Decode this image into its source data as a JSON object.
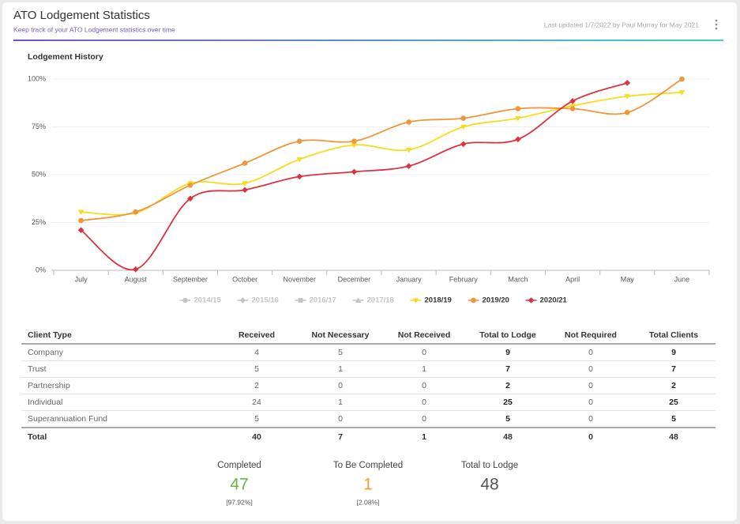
{
  "header": {
    "title": "ATO Lodgement Statistics",
    "subtitle": "Keep track of your ATO Lodgement statistics over time",
    "updated": "Last updated 1/7/2022 by Paul Murray for May 2021"
  },
  "chart_data": {
    "type": "line",
    "title": "Lodgement History",
    "categories": [
      "July",
      "August",
      "September",
      "October",
      "November",
      "December",
      "January",
      "February",
      "March",
      "April",
      "May",
      "June"
    ],
    "ylim": [
      0,
      100
    ],
    "yticks": [
      {
        "value": 0,
        "label": "0%"
      },
      {
        "value": 25,
        "label": "25%"
      },
      {
        "value": 50,
        "label": "50%"
      },
      {
        "value": 75,
        "label": "75%"
      },
      {
        "value": 100,
        "label": "100%"
      }
    ],
    "grid": true,
    "legend": "bottom",
    "series": [
      {
        "name": "2014/15",
        "color": "#c4c4c4",
        "marker": "circle",
        "visible": false,
        "values": [
          null,
          null,
          null,
          null,
          null,
          null,
          null,
          null,
          null,
          null,
          null,
          null
        ]
      },
      {
        "name": "2015/16",
        "color": "#c4c4c4",
        "marker": "diamond",
        "visible": false,
        "values": [
          null,
          null,
          null,
          null,
          null,
          null,
          null,
          null,
          null,
          null,
          null,
          null
        ]
      },
      {
        "name": "2016/17",
        "color": "#c4c4c4",
        "marker": "square",
        "visible": false,
        "values": [
          null,
          null,
          null,
          null,
          null,
          null,
          null,
          null,
          null,
          null,
          null,
          null
        ]
      },
      {
        "name": "2017/18",
        "color": "#c4c4c4",
        "marker": "triangle",
        "visible": false,
        "values": [
          null,
          null,
          null,
          null,
          null,
          null,
          null,
          null,
          null,
          null,
          null,
          null
        ]
      },
      {
        "name": "2018/19",
        "color": "#f7dc1e",
        "marker": "triangle-down",
        "visible": true,
        "values": [
          30.5,
          30,
          45.5,
          45.5,
          58,
          65.5,
          63,
          75,
          79.5,
          86,
          91,
          93
        ]
      },
      {
        "name": "2019/20",
        "color": "#f0953a",
        "marker": "circle",
        "visible": true,
        "values": [
          26,
          30.5,
          44.5,
          56,
          67.5,
          67.5,
          77.5,
          79.5,
          84.5,
          84.5,
          82.5,
          100
        ]
      },
      {
        "name": "2020/21",
        "color": "#d9343f",
        "marker": "diamond",
        "visible": true,
        "values": [
          21,
          0.5,
          37.5,
          42,
          49,
          51.5,
          54.5,
          66,
          68.5,
          88.5,
          98,
          null
        ]
      }
    ]
  },
  "table": {
    "columns": [
      "Client Type",
      "Received",
      "Not Necessary",
      "Not Received",
      "Total to Lodge",
      "Not Required",
      "Total Clients"
    ],
    "rows": [
      [
        "Company",
        4,
        5,
        0,
        9,
        0,
        9
      ],
      [
        "Trust",
        5,
        1,
        1,
        7,
        0,
        7
      ],
      [
        "Partnership",
        2,
        0,
        0,
        2,
        0,
        2
      ],
      [
        "Individual",
        24,
        1,
        0,
        25,
        0,
        25
      ],
      [
        "Superannuation Fund",
        5,
        0,
        0,
        5,
        0,
        5
      ]
    ],
    "total": [
      "Total",
      40,
      7,
      1,
      48,
      0,
      48
    ]
  },
  "summary": [
    {
      "label": "Completed",
      "value": 47,
      "percent": "[97.92%]",
      "color": "#6db33f"
    },
    {
      "label": "To Be Completed",
      "value": 1,
      "percent": "[2.08%]",
      "color": "#f0a030"
    },
    {
      "label": "Total to Lodge",
      "value": 48,
      "color": "#555555"
    }
  ]
}
